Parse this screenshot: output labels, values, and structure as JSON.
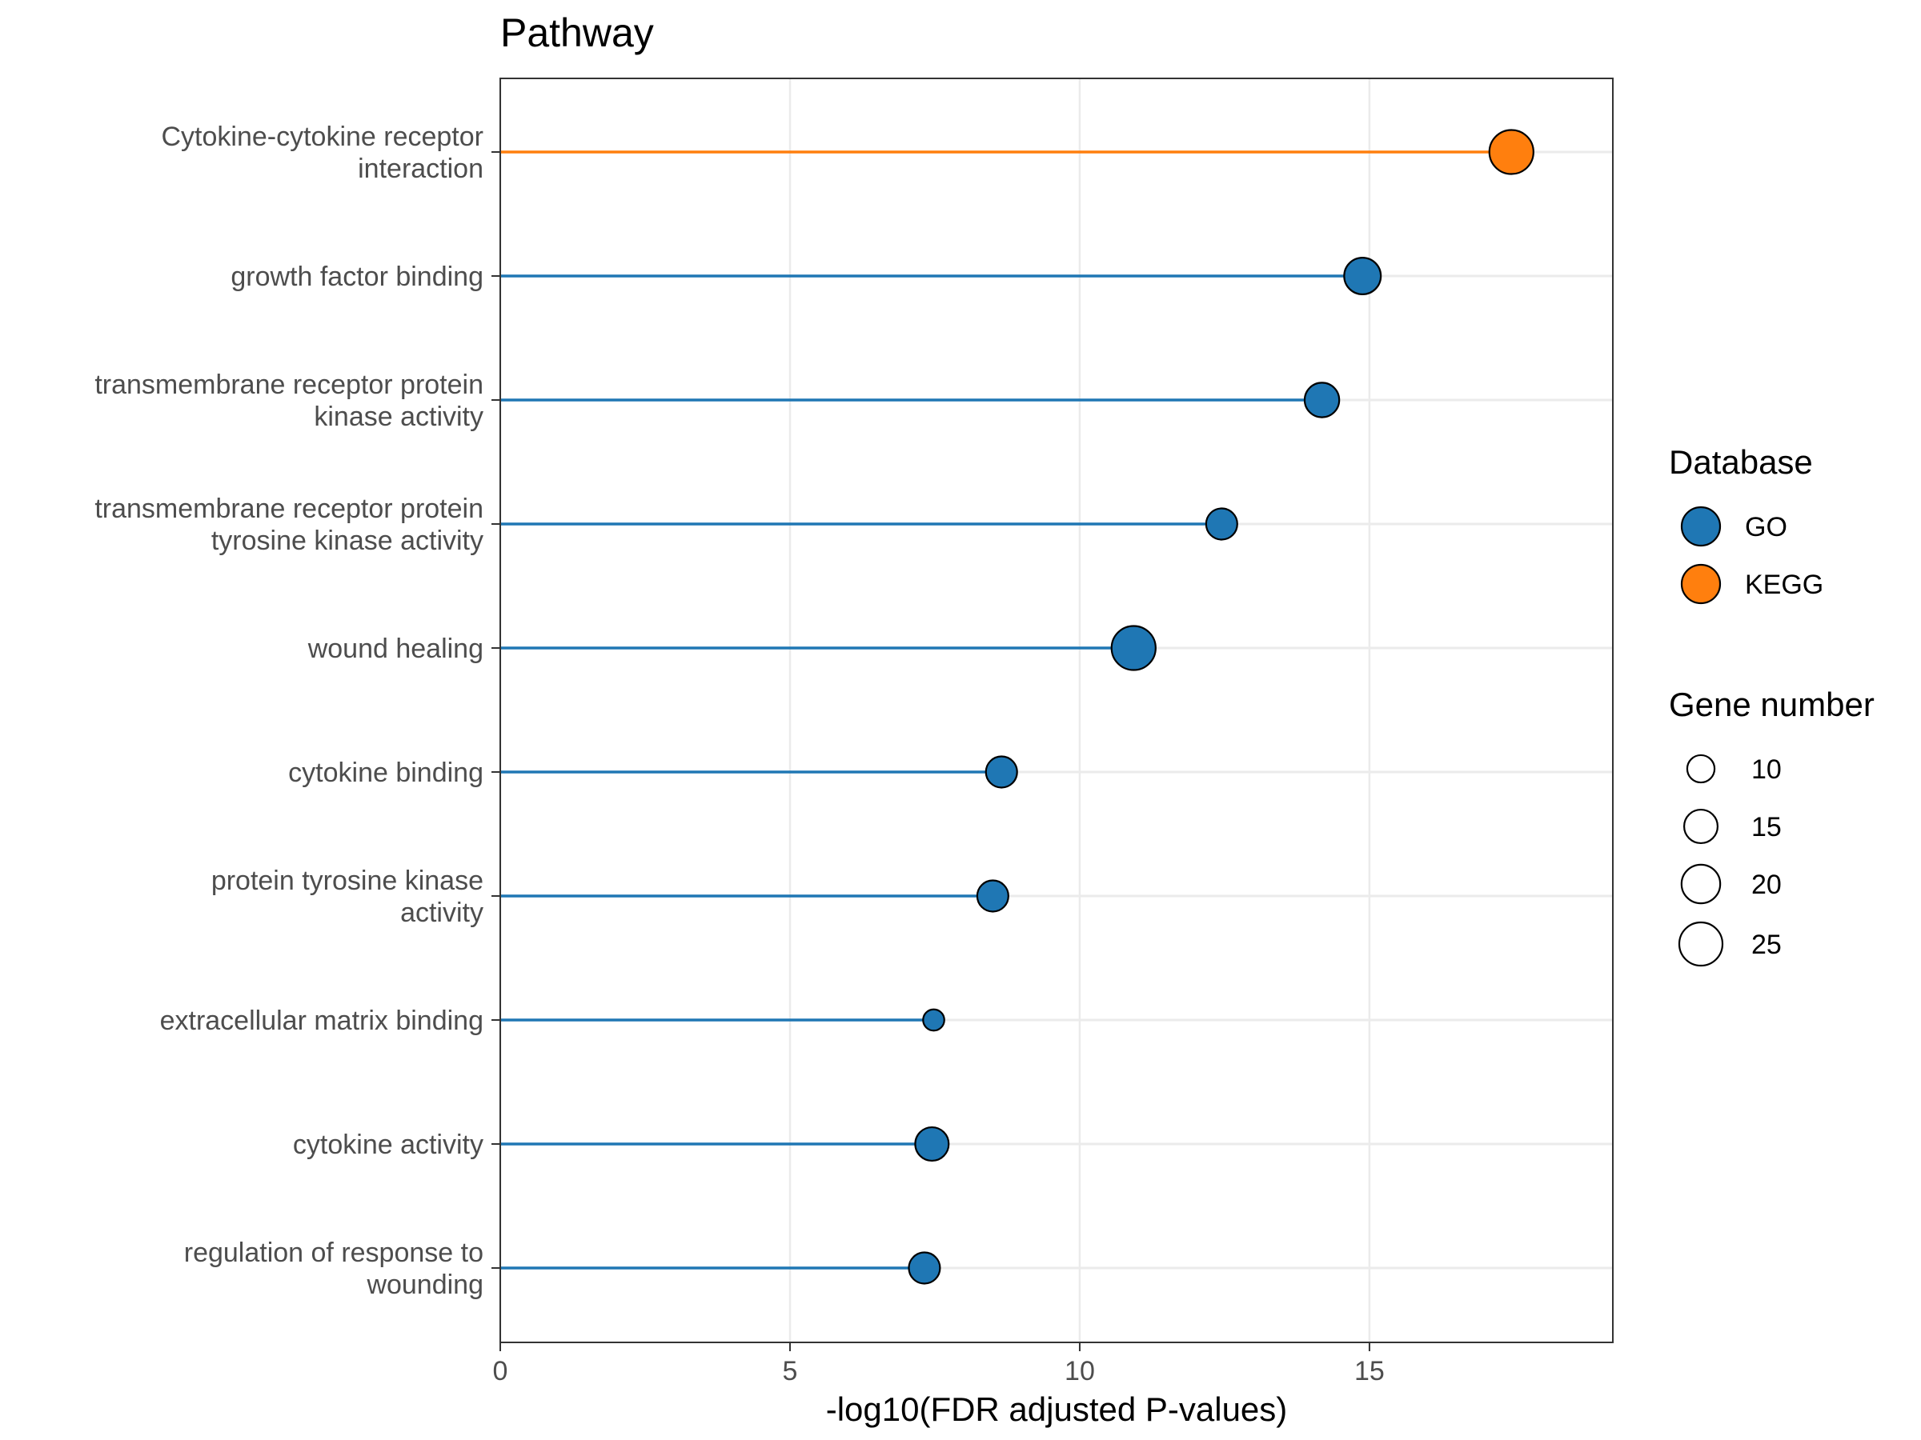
{
  "chart_data": {
    "type": "lollipop",
    "title": "Pathway",
    "xlabel": "-log10(FDR adjusted P-values)",
    "ylabel": "",
    "xlim": [
      0,
      19.2
    ],
    "xticks": [
      0,
      5,
      10,
      15
    ],
    "grid": true,
    "categories": [
      [
        "Cytokine-cytokine receptor",
        "interaction"
      ],
      [
        "growth factor binding"
      ],
      [
        "transmembrane receptor protein",
        "kinase activity"
      ],
      [
        "transmembrane receptor protein",
        "tyrosine kinase activity"
      ],
      [
        "wound healing"
      ],
      [
        "cytokine binding"
      ],
      [
        "protein tyrosine kinase",
        "activity"
      ],
      [
        "extracellular matrix binding"
      ],
      [
        "cytokine activity"
      ],
      [
        "regulation of response to",
        "wounding"
      ]
    ],
    "points": [
      {
        "x": 17.45,
        "database": "KEGG",
        "genes": 26
      },
      {
        "x": 14.88,
        "database": "GO",
        "genes": 18
      },
      {
        "x": 14.18,
        "database": "GO",
        "genes": 16
      },
      {
        "x": 12.45,
        "database": "GO",
        "genes": 13
      },
      {
        "x": 10.93,
        "database": "GO",
        "genes": 26
      },
      {
        "x": 8.65,
        "database": "GO",
        "genes": 13
      },
      {
        "x": 8.5,
        "database": "GO",
        "genes": 13
      },
      {
        "x": 7.48,
        "database": "GO",
        "genes": 6
      },
      {
        "x": 7.45,
        "database": "GO",
        "genes": 15
      },
      {
        "x": 7.32,
        "database": "GO",
        "genes": 13
      }
    ],
    "legend": {
      "position": "right",
      "color_title": "Database",
      "color_entries": [
        {
          "label": "GO",
          "color": "#1f77b4"
        },
        {
          "label": "KEGG",
          "color": "#ff7f0e"
        }
      ],
      "size_title": "Gene number",
      "size_entries": [
        {
          "label": "10",
          "value": 10
        },
        {
          "label": "15",
          "value": 15
        },
        {
          "label": "20",
          "value": 20
        },
        {
          "label": "25",
          "value": 25
        }
      ]
    }
  }
}
